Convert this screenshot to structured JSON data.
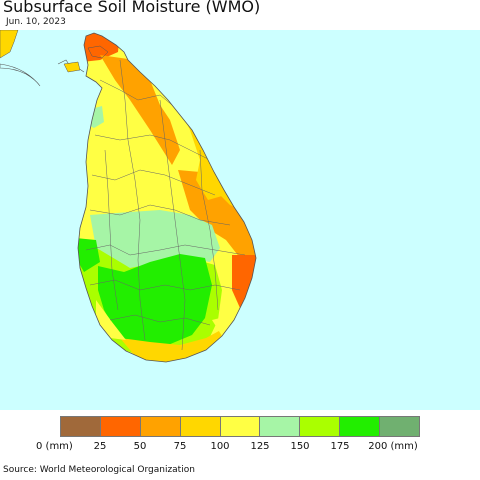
{
  "title": "Subsurface Soil Moisture (WMO)",
  "date": "Jun. 10, 2023",
  "source": "Source: World Meteorological Organization",
  "colors": {
    "ocean": "#ccffff",
    "land_outside": "#ffd700",
    "border": "#555555"
  },
  "legend": {
    "swatches": [
      {
        "color": "#a0693a"
      },
      {
        "color": "#ff6600"
      },
      {
        "color": "#ffa200"
      },
      {
        "color": "#ffd700"
      },
      {
        "color": "#ffff44"
      },
      {
        "color": "#a6f5a6"
      },
      {
        "color": "#aaff00"
      },
      {
        "color": "#22ee00"
      },
      {
        "color": "#70b070"
      }
    ],
    "ticks": [
      "0 (mm)",
      "25",
      "50",
      "75",
      "100",
      "125",
      "150",
      "175",
      "200 (mm)"
    ]
  }
}
